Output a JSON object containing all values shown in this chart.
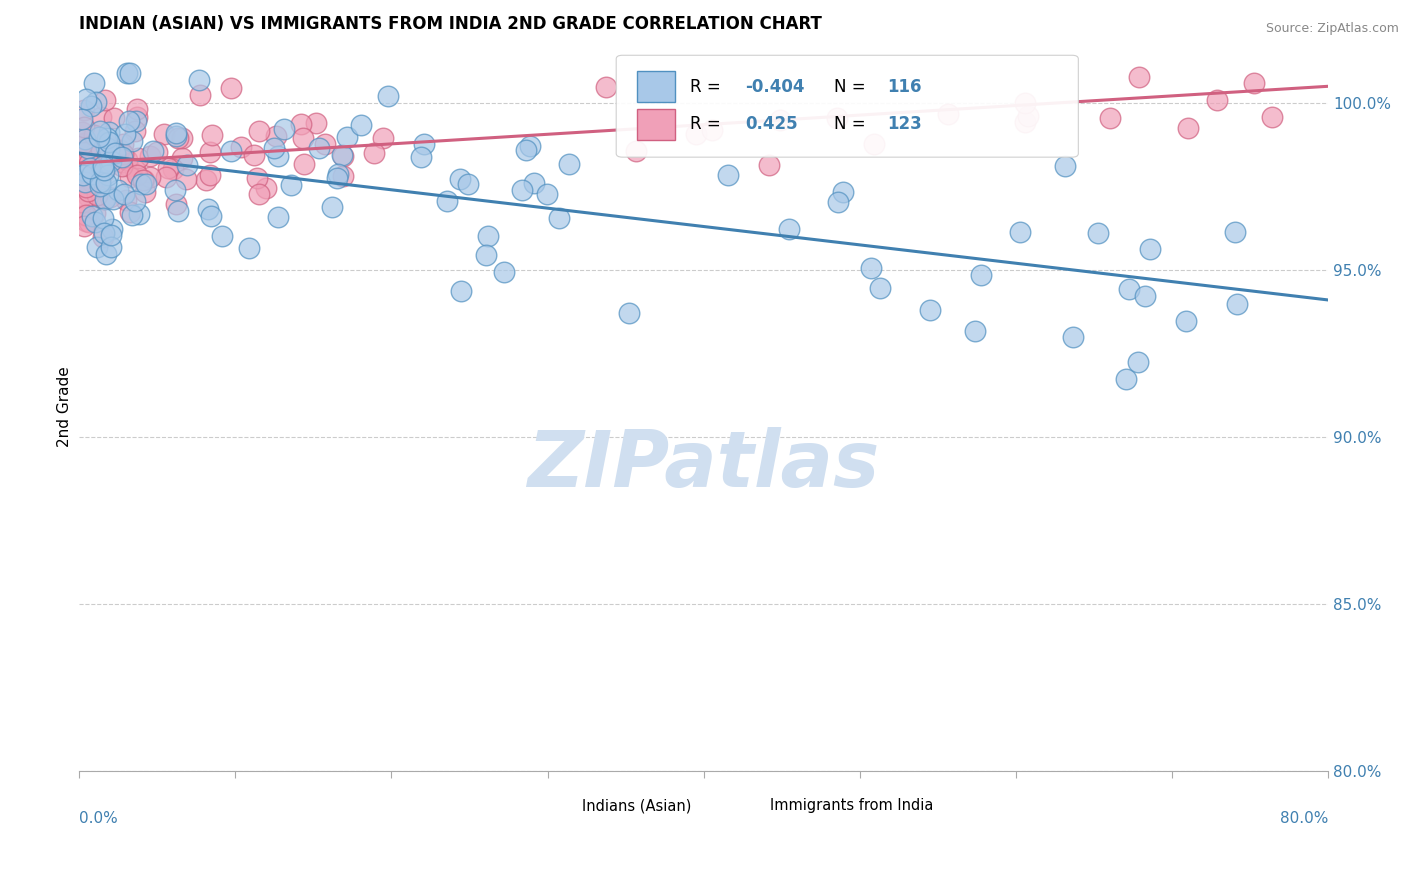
{
  "title": "INDIAN (ASIAN) VS IMMIGRANTS FROM INDIA 2ND GRADE CORRELATION CHART",
  "source_text": "Source: ZipAtlas.com",
  "ylabel": "2nd Grade",
  "xmin": 0.0,
  "xmax": 80.0,
  "ymin": 80.0,
  "ymax": 101.8,
  "ytick_labels": [
    "80.0%",
    "85.0%",
    "90.0%",
    "95.0%",
    "100.0%"
  ],
  "ytick_values": [
    80.0,
    85.0,
    90.0,
    95.0,
    100.0
  ],
  "color_blue": "#A8C8E8",
  "color_pink": "#F0A0B8",
  "color_blue_edge": "#5090C0",
  "color_pink_edge": "#D06080",
  "color_trend_blue": "#4080B0",
  "color_trend_pink": "#D06080",
  "color_legend_text": "#4080B0",
  "watermark": "ZIPatlas",
  "watermark_color": "#D0DFF0",
  "background_color": "#FFFFFF",
  "series1_label": "Indians (Asian)",
  "series2_label": "Immigrants from India",
  "blue_trend_x0": 0.0,
  "blue_trend_y0": 98.5,
  "blue_trend_x1": 80.0,
  "blue_trend_y1": 94.1,
  "pink_trend_x0": 0.0,
  "pink_trend_y0": 98.2,
  "pink_trend_x1": 80.0,
  "pink_trend_y1": 100.5
}
